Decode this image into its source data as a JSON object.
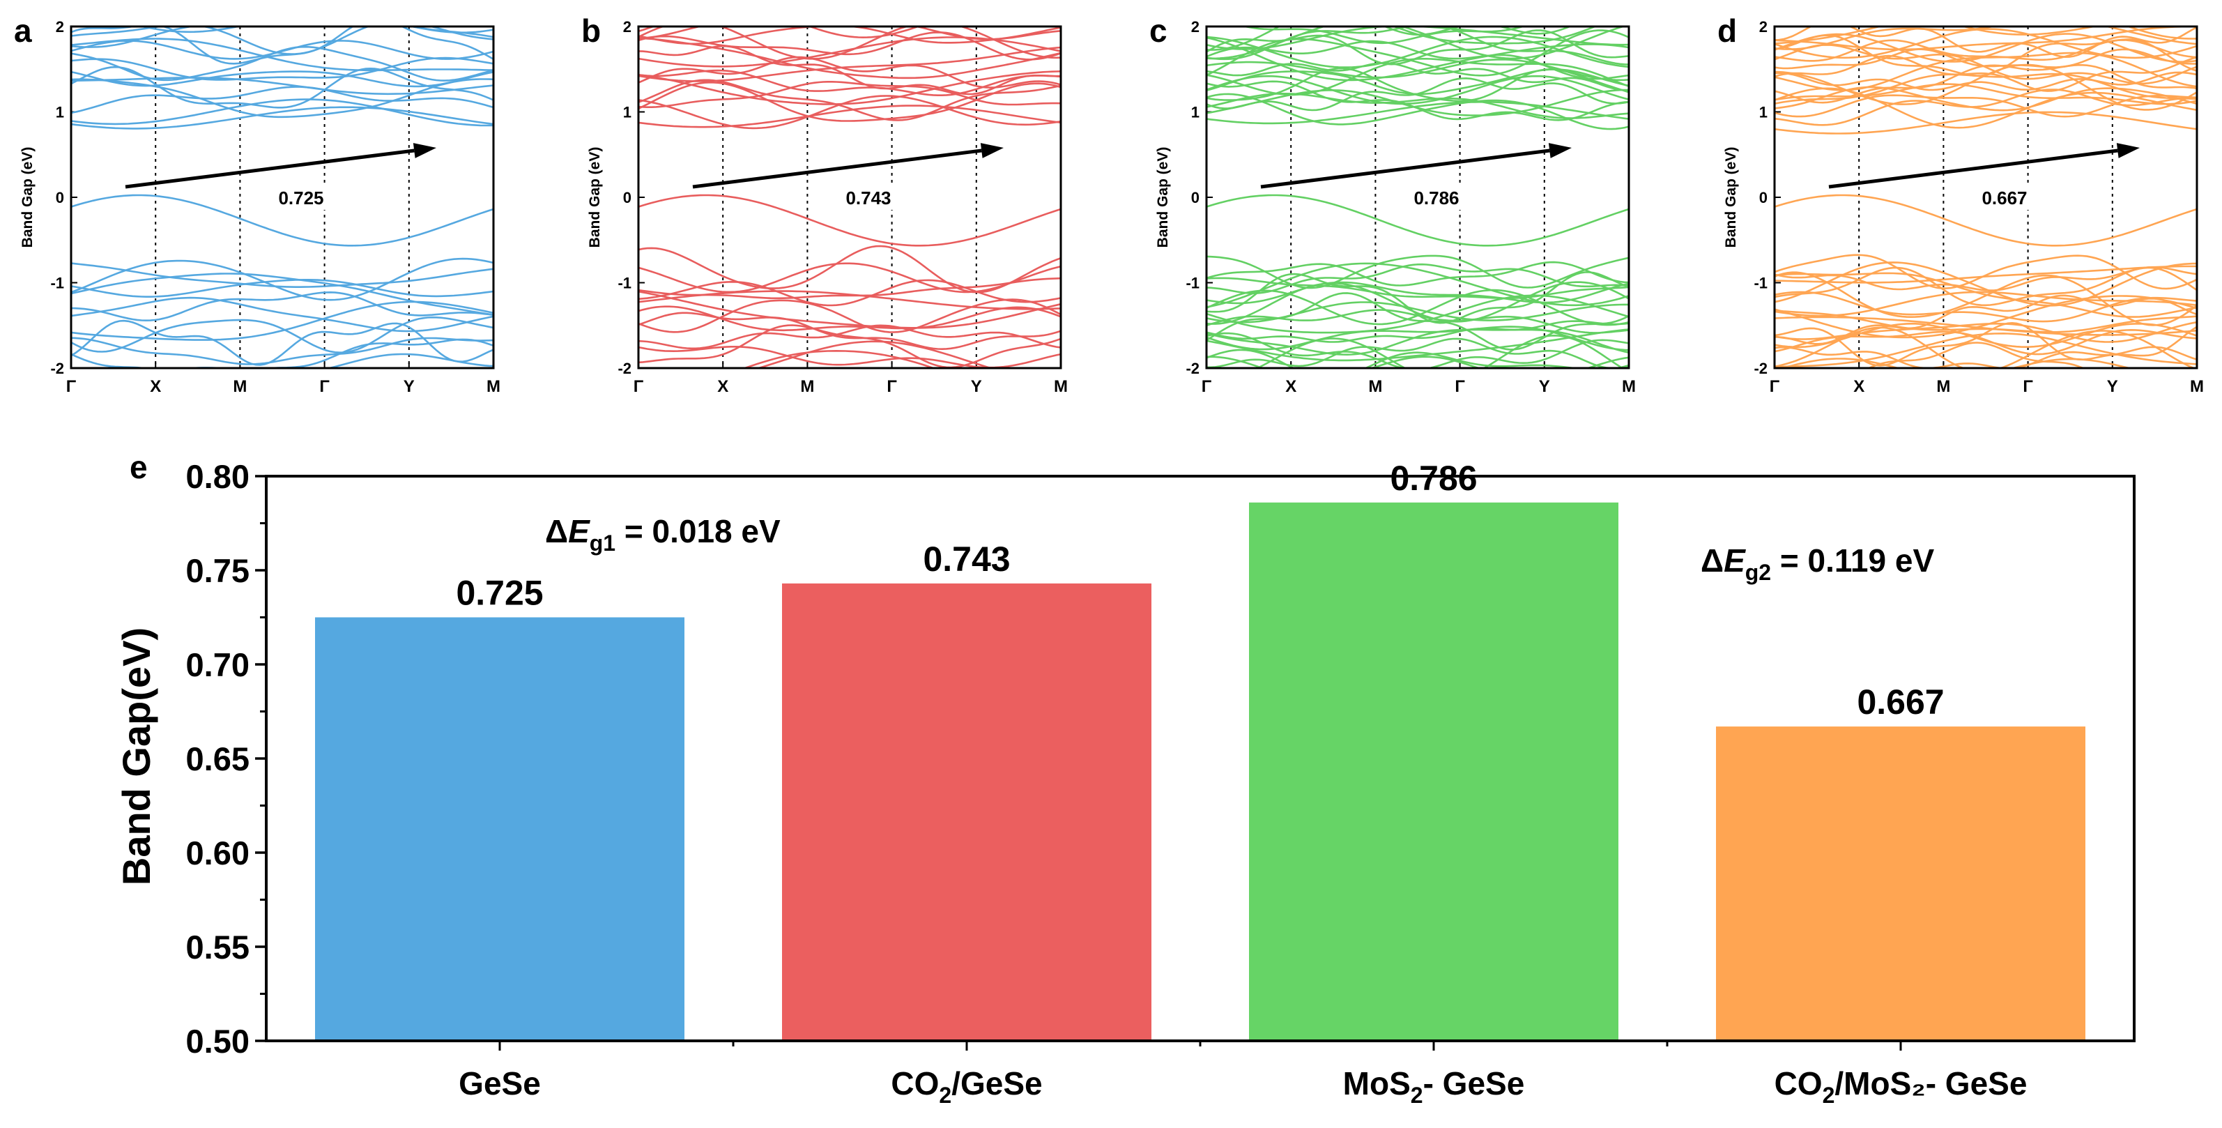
{
  "chart_data": [
    {
      "id": "a",
      "type": "line",
      "subtype": "band_structure",
      "panel_label": "a",
      "ylabel": "Band Gap (eV)",
      "ylim": [
        -2,
        2
      ],
      "yticks": [
        "2",
        "1",
        "0",
        "-1",
        "-2"
      ],
      "kpoints": [
        "Γ",
        "X",
        "M",
        "Γ",
        "Y",
        "M"
      ],
      "band_gap": 0.725,
      "gap_label": "0.725",
      "color": "#55a8e0",
      "conduction_band_count": 14,
      "valence_band_count": 12
    },
    {
      "id": "b",
      "type": "line",
      "subtype": "band_structure",
      "panel_label": "b",
      "ylabel": "Band Gap (eV)",
      "ylim": [
        -2,
        2
      ],
      "yticks": [
        "2",
        "1",
        "0",
        "-1",
        "-2"
      ],
      "kpoints": [
        "Γ",
        "X",
        "M",
        "Γ",
        "Y",
        "M"
      ],
      "band_gap": 0.743,
      "gap_label": "0.743",
      "color": "#e85d5d",
      "conduction_band_count": 16,
      "valence_band_count": 14
    },
    {
      "id": "c",
      "type": "line",
      "subtype": "band_structure",
      "panel_label": "c",
      "ylabel": "Band Gap (eV)",
      "ylim": [
        -2,
        2
      ],
      "yticks": [
        "2",
        "1",
        "0",
        "-1",
        "-2"
      ],
      "kpoints": [
        "Γ",
        "X",
        "M",
        "Γ",
        "Y",
        "M"
      ],
      "band_gap": 0.786,
      "gap_label": "0.786",
      "color": "#63d063",
      "conduction_band_count": 22,
      "valence_band_count": 22
    },
    {
      "id": "d",
      "type": "line",
      "subtype": "band_structure",
      "panel_label": "d",
      "ylabel": "Band Gap (eV)",
      "ylim": [
        -2,
        2
      ],
      "yticks": [
        "2",
        "1",
        "0",
        "-1",
        "-2"
      ],
      "kpoints": [
        "Γ",
        "X",
        "M",
        "Γ",
        "Y",
        "M"
      ],
      "band_gap": 0.667,
      "gap_label": "0.667",
      "color": "#ffa552",
      "conduction_band_count": 22,
      "valence_band_count": 22
    },
    {
      "id": "e",
      "type": "bar",
      "panel_label": "e",
      "title": "",
      "xlabel": "",
      "ylabel": "Band Gap(eV)",
      "ylim": [
        0.5,
        0.8
      ],
      "yticks": [
        "0.50",
        "0.55",
        "0.60",
        "0.65",
        "0.70",
        "0.75",
        "0.80"
      ],
      "categories": [
        {
          "base": "GeSe",
          "sub": "",
          "tail": ""
        },
        {
          "base": "CO",
          "sub": "2",
          "tail": "/GeSe"
        },
        {
          "base": "MoS",
          "sub": "2",
          "tail": "- GeSe"
        },
        {
          "base": "CO",
          "sub": "2",
          "tail": "/MoS₂- GeSe"
        }
      ],
      "values": [
        0.725,
        0.743,
        0.786,
        0.667
      ],
      "value_labels": [
        "0.725",
        "0.743",
        "0.786",
        "0.667"
      ],
      "colors": [
        "#55a8e0",
        "#eb5f5f",
        "#66d466",
        "#ffa552"
      ],
      "annotations": [
        {
          "prefix": "ΔE",
          "sub": "g1",
          "text": " = 0.018 eV"
        },
        {
          "prefix": "ΔE",
          "sub": "g2",
          "text": " = 0.119 eV"
        }
      ]
    }
  ]
}
